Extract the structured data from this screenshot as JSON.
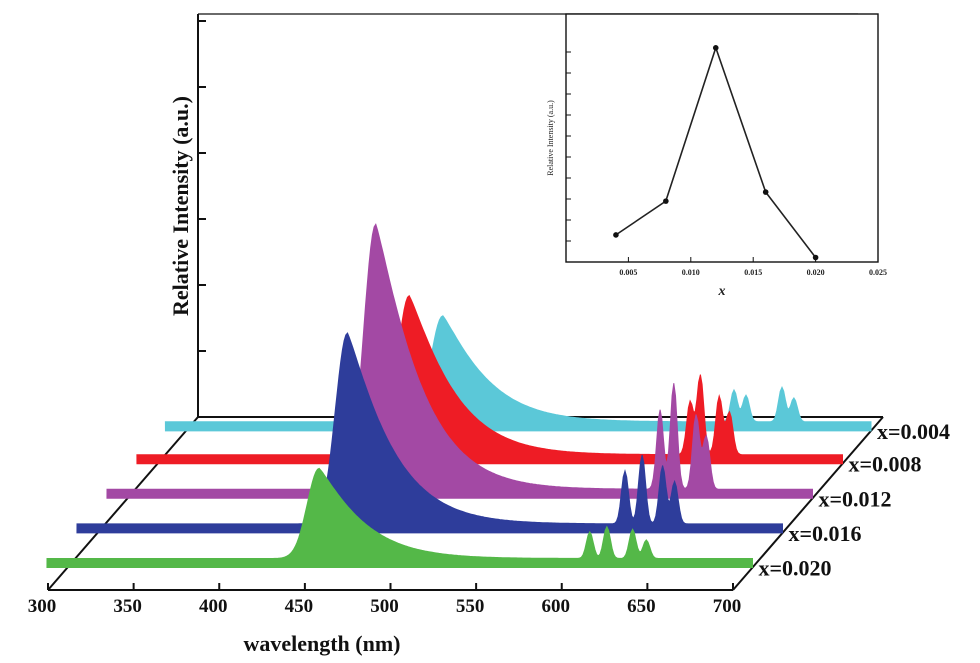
{
  "chart_data": [
    {
      "type": "area",
      "style": "3d-waterfall",
      "title": "",
      "xlabel": "wavelength (nm)",
      "ylabel": "Relative Intensity (a.u.)",
      "xlim": [
        300,
        700
      ],
      "x_ticks": [
        "300",
        "350",
        "400",
        "450",
        "500",
        "550",
        "600",
        "650",
        "700"
      ],
      "series_labels": [
        "x=0.004",
        "x=0.008",
        "x=0.012",
        "x=0.016",
        "x=0.020"
      ],
      "series": [
        {
          "x_value": "0.004",
          "color": "#5bc8d8",
          "peaks": [
            {
              "center": 450,
              "height": 0.4,
              "left_width": 7,
              "right_width": 28
            },
            {
              "center": 620,
              "height": 0.12,
              "left_width": 2,
              "right_width": 2
            },
            {
              "center": 627,
              "height": 0.1,
              "left_width": 2,
              "right_width": 2
            },
            {
              "center": 648,
              "height": 0.13,
              "left_width": 2,
              "right_width": 2
            },
            {
              "center": 655,
              "height": 0.09,
              "left_width": 2,
              "right_width": 2
            }
          ]
        },
        {
          "x_value": "0.008",
          "color": "#ee1c25",
          "peaks": [
            {
              "center": 447,
              "height": 0.6,
              "left_width": 7,
              "right_width": 28
            },
            {
              "center": 611,
              "height": 0.2,
              "left_width": 2,
              "right_width": 2
            },
            {
              "center": 617,
              "height": 0.3,
              "left_width": 2,
              "right_width": 2
            },
            {
              "center": 628,
              "height": 0.22,
              "left_width": 2,
              "right_width": 2
            },
            {
              "center": 634,
              "height": 0.16,
              "left_width": 2,
              "right_width": 2
            }
          ]
        },
        {
          "x_value": "0.012",
          "color": "#a349a4",
          "peaks": [
            {
              "center": 445,
              "height": 1.0,
              "left_width": 7,
              "right_width": 28
            },
            {
              "center": 611,
              "height": 0.3,
              "left_width": 2,
              "right_width": 2
            },
            {
              "center": 619,
              "height": 0.4,
              "left_width": 2,
              "right_width": 2
            },
            {
              "center": 632,
              "height": 0.28,
              "left_width": 2,
              "right_width": 2
            },
            {
              "center": 638,
              "height": 0.2,
              "left_width": 2,
              "right_width": 2
            }
          ]
        },
        {
          "x_value": "0.016",
          "color": "#2e3d9b",
          "peaks": [
            {
              "center": 446,
              "height": 0.72,
              "left_width": 7,
              "right_width": 28
            },
            {
              "center": 608,
              "height": 0.2,
              "left_width": 2,
              "right_width": 2
            },
            {
              "center": 618,
              "height": 0.26,
              "left_width": 2,
              "right_width": 2
            },
            {
              "center": 630,
              "height": 0.22,
              "left_width": 2,
              "right_width": 2
            },
            {
              "center": 637,
              "height": 0.16,
              "left_width": 2,
              "right_width": 2
            }
          ]
        },
        {
          "x_value": "0.020",
          "color": "#54b848",
          "peaks": [
            {
              "center": 447,
              "height": 0.34,
              "left_width": 7,
              "right_width": 28
            },
            {
              "center": 605,
              "height": 0.1,
              "left_width": 2,
              "right_width": 2
            },
            {
              "center": 615,
              "height": 0.12,
              "left_width": 2,
              "right_width": 2
            },
            {
              "center": 630,
              "height": 0.11,
              "left_width": 2,
              "right_width": 2
            },
            {
              "center": 638,
              "height": 0.07,
              "left_width": 2,
              "right_width": 2
            }
          ]
        }
      ]
    },
    {
      "type": "line",
      "role": "inset",
      "title": "",
      "xlabel": "x",
      "ylabel": "Relative Intensity (a.u.)",
      "xlim": [
        0.0,
        0.025
      ],
      "ylim": [
        0,
        1.1
      ],
      "x_ticks": [
        "0.005",
        "0.010",
        "0.015",
        "0.020",
        "0.025"
      ],
      "x": [
        0.004,
        0.008,
        0.012,
        0.016,
        0.02
      ],
      "y": [
        0.12,
        0.27,
        0.95,
        0.31,
        0.02
      ]
    }
  ]
}
